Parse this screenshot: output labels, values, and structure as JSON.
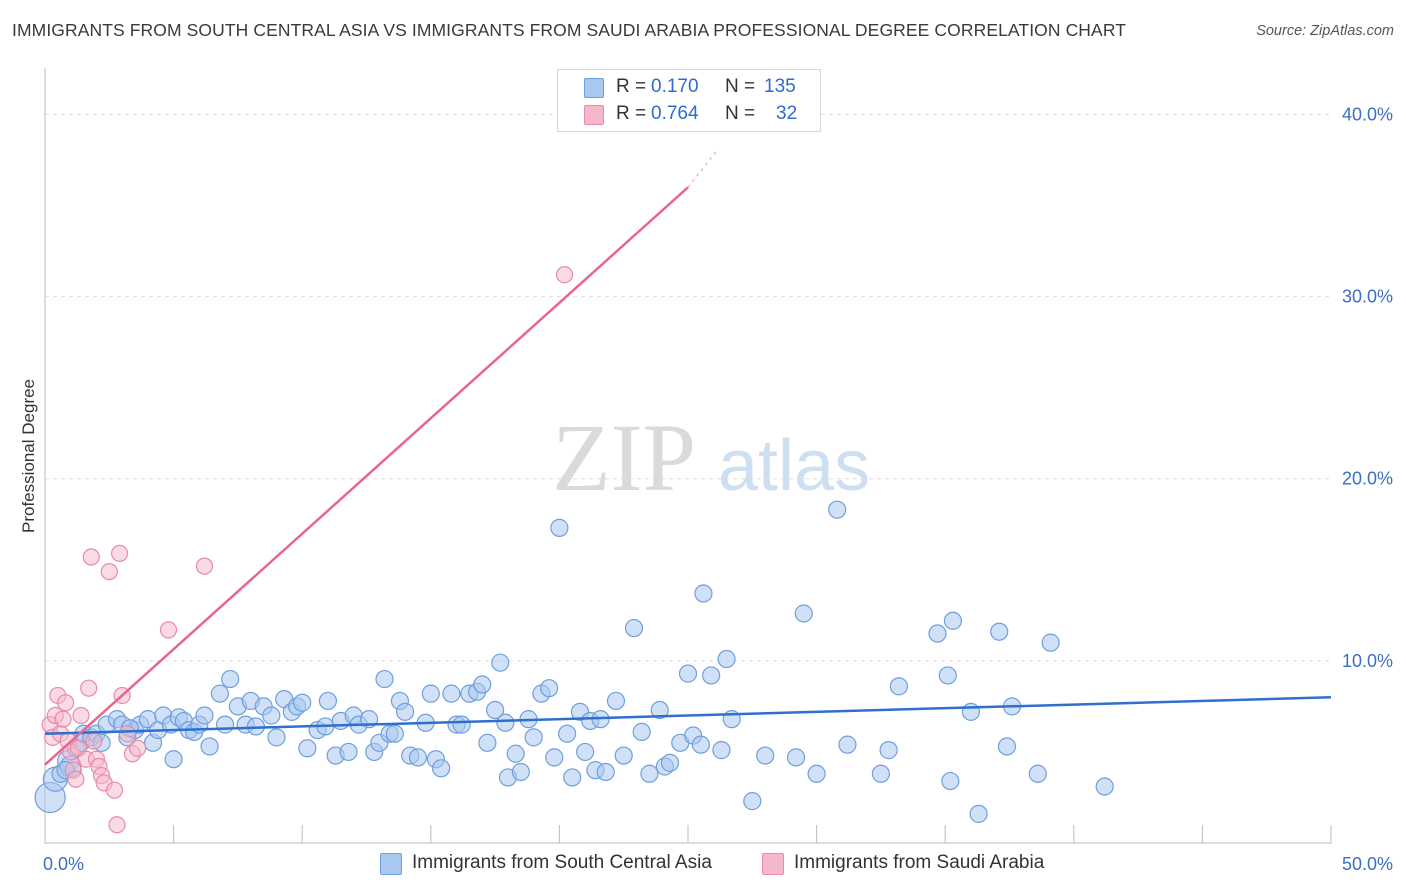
{
  "header": {
    "title": "IMMIGRANTS FROM SOUTH CENTRAL ASIA VS IMMIGRANTS FROM SAUDI ARABIA PROFESSIONAL DEGREE CORRELATION CHART",
    "source": "Source: ZipAtlas.com"
  },
  "watermark": "ZIPatlas",
  "legend": {
    "rows": [
      {
        "r_label": "R =",
        "r_value": "0.170",
        "n_label": "N =",
        "n_value": "135",
        "color": "#a9c8f0"
      },
      {
        "r_label": "R =",
        "r_value": "0.764",
        "n_label": "N =",
        "n_value": "32",
        "color": "#f5b8cb"
      }
    ]
  },
  "bottom_legend": {
    "series1": "Immigrants from South Central Asia",
    "series2": "Immigrants from Saudi Arabia"
  },
  "colors": {
    "blue_fill": "#a9c8f0",
    "blue_stroke": "#6f9fdc",
    "blue_line": "#2e6fd0",
    "pink_fill": "#f5b8cb",
    "pink_stroke": "#e98aa8",
    "pink_line": "#e8658f",
    "grid": "#dddddd",
    "tick_label": "#3a6fc4"
  },
  "chart_data": {
    "type": "scatter",
    "title": "IMMIGRANTS FROM SOUTH CENTRAL ASIA VS IMMIGRANTS FROM SAUDI ARABIA PROFESSIONAL DEGREE CORRELATION CHART",
    "xlabel": "",
    "ylabel": "Professional Degree",
    "xlim": [
      0,
      50
    ],
    "ylim": [
      0,
      42
    ],
    "x_tick_labels": [
      "0.0%",
      "50.0%"
    ],
    "y_ticks": [
      10,
      20,
      30,
      40
    ],
    "y_tick_labels": [
      "10.0%",
      "20.0%",
      "30.0%",
      "40.0%"
    ],
    "grid": "horizontal dashed",
    "legend_position": "top-center",
    "series": [
      {
        "name": "Immigrants from South Central Asia",
        "R": 0.17,
        "N": 135,
        "trend": {
          "x": [
            0,
            50
          ],
          "y": [
            6.0,
            8.0
          ]
        },
        "points": [
          [
            0.2,
            2.5
          ],
          [
            0.4,
            3.5
          ],
          [
            0.6,
            3.8
          ],
          [
            0.9,
            4.5
          ],
          [
            1.0,
            4.2
          ],
          [
            1.2,
            5.2
          ],
          [
            1.4,
            5.5
          ],
          [
            1.5,
            6.0
          ],
          [
            1.8,
            5.8
          ],
          [
            2.0,
            6.0
          ],
          [
            2.2,
            5.5
          ],
          [
            2.4,
            6.5
          ],
          [
            2.8,
            6.8
          ],
          [
            3.0,
            6.5
          ],
          [
            3.2,
            5.8
          ],
          [
            3.5,
            6.2
          ],
          [
            3.7,
            6.5
          ],
          [
            4.0,
            6.8
          ],
          [
            4.2,
            5.5
          ],
          [
            4.4,
            6.2
          ],
          [
            4.6,
            7.0
          ],
          [
            4.9,
            6.5
          ],
          [
            5.0,
            4.6
          ],
          [
            5.2,
            6.9
          ],
          [
            5.4,
            6.7
          ],
          [
            5.6,
            6.2
          ],
          [
            5.8,
            6.1
          ],
          [
            6.0,
            6.5
          ],
          [
            6.2,
            7.0
          ],
          [
            6.4,
            5.3
          ],
          [
            6.8,
            8.2
          ],
          [
            7.0,
            6.5
          ],
          [
            7.2,
            9.0
          ],
          [
            7.5,
            7.5
          ],
          [
            7.8,
            6.5
          ],
          [
            8.0,
            7.8
          ],
          [
            8.2,
            6.4
          ],
          [
            8.5,
            7.5
          ],
          [
            8.8,
            7.0
          ],
          [
            9.0,
            5.8
          ],
          [
            9.3,
            7.9
          ],
          [
            9.6,
            7.2
          ],
          [
            9.8,
            7.5
          ],
          [
            10.0,
            7.7
          ],
          [
            10.2,
            5.2
          ],
          [
            10.6,
            6.2
          ],
          [
            10.9,
            6.4
          ],
          [
            11.0,
            7.8
          ],
          [
            11.3,
            4.8
          ],
          [
            11.5,
            6.7
          ],
          [
            11.8,
            5.0
          ],
          [
            12.0,
            7.0
          ],
          [
            12.2,
            6.5
          ],
          [
            12.6,
            6.8
          ],
          [
            12.8,
            5.0
          ],
          [
            13.0,
            5.5
          ],
          [
            13.2,
            9.0
          ],
          [
            13.4,
            6.0
          ],
          [
            13.6,
            6.0
          ],
          [
            13.8,
            7.8
          ],
          [
            14.0,
            7.2
          ],
          [
            14.2,
            4.8
          ],
          [
            14.5,
            4.7
          ],
          [
            14.8,
            6.6
          ],
          [
            15.0,
            8.2
          ],
          [
            15.2,
            4.6
          ],
          [
            15.4,
            4.1
          ],
          [
            15.8,
            8.2
          ],
          [
            16.0,
            6.5
          ],
          [
            16.2,
            6.5
          ],
          [
            16.5,
            8.2
          ],
          [
            16.8,
            8.3
          ],
          [
            17.0,
            8.7
          ],
          [
            17.2,
            5.5
          ],
          [
            17.5,
            7.3
          ],
          [
            17.7,
            9.9
          ],
          [
            17.9,
            6.6
          ],
          [
            18.0,
            3.6
          ],
          [
            18.3,
            4.9
          ],
          [
            18.5,
            3.9
          ],
          [
            18.8,
            6.8
          ],
          [
            19.0,
            5.8
          ],
          [
            19.3,
            8.2
          ],
          [
            19.6,
            8.5
          ],
          [
            19.8,
            4.7
          ],
          [
            20.0,
            17.3
          ],
          [
            20.3,
            6.0
          ],
          [
            20.5,
            3.6
          ],
          [
            20.8,
            7.2
          ],
          [
            21.0,
            5.0
          ],
          [
            21.2,
            6.7
          ],
          [
            21.4,
            4.0
          ],
          [
            21.6,
            6.8
          ],
          [
            21.8,
            3.9
          ],
          [
            22.2,
            7.8
          ],
          [
            22.5,
            4.8
          ],
          [
            22.9,
            11.8
          ],
          [
            23.2,
            6.1
          ],
          [
            23.5,
            3.8
          ],
          [
            23.9,
            7.3
          ],
          [
            24.1,
            4.2
          ],
          [
            24.3,
            4.4
          ],
          [
            24.7,
            5.5
          ],
          [
            25.0,
            9.3
          ],
          [
            25.2,
            5.9
          ],
          [
            25.5,
            5.4
          ],
          [
            25.6,
            13.7
          ],
          [
            25.9,
            9.2
          ],
          [
            26.3,
            5.1
          ],
          [
            26.5,
            10.1
          ],
          [
            26.7,
            6.8
          ],
          [
            27.5,
            2.3
          ],
          [
            28.0,
            4.8
          ],
          [
            29.2,
            4.7
          ],
          [
            29.5,
            12.6
          ],
          [
            30.0,
            3.8
          ],
          [
            30.8,
            18.3
          ],
          [
            31.2,
            5.4
          ],
          [
            32.5,
            3.8
          ],
          [
            32.8,
            5.1
          ],
          [
            33.2,
            8.6
          ],
          [
            34.7,
            11.5
          ],
          [
            35.1,
            9.2
          ],
          [
            35.2,
            3.4
          ],
          [
            35.3,
            12.2
          ],
          [
            36.0,
            7.2
          ],
          [
            36.3,
            1.6
          ],
          [
            37.1,
            11.6
          ],
          [
            37.4,
            5.3
          ],
          [
            37.6,
            7.5
          ],
          [
            38.6,
            3.8
          ],
          [
            39.1,
            11.0
          ],
          [
            41.2,
            3.1
          ],
          [
            0.8,
            4.0
          ],
          [
            3.3,
            6.3
          ]
        ]
      },
      {
        "name": "Immigrants from Saudi Arabia",
        "R": 0.764,
        "N": 32,
        "trend": {
          "x": [
            0,
            25
          ],
          "y": [
            4.3,
            36
          ]
        },
        "points": [
          [
            0.2,
            6.5
          ],
          [
            0.3,
            5.8
          ],
          [
            0.4,
            7.0
          ],
          [
            0.5,
            8.1
          ],
          [
            0.6,
            6.0
          ],
          [
            0.7,
            6.8
          ],
          [
            0.8,
            7.7
          ],
          [
            0.9,
            5.6
          ],
          [
            1.0,
            5.0
          ],
          [
            1.1,
            4.0
          ],
          [
            1.2,
            3.5
          ],
          [
            1.3,
            5.2
          ],
          [
            1.4,
            7.0
          ],
          [
            1.6,
            4.6
          ],
          [
            1.7,
            8.5
          ],
          [
            1.8,
            15.7
          ],
          [
            1.9,
            5.6
          ],
          [
            2.0,
            4.6
          ],
          [
            2.1,
            4.2
          ],
          [
            2.2,
            3.7
          ],
          [
            2.3,
            3.3
          ],
          [
            2.5,
            14.9
          ],
          [
            2.7,
            2.9
          ],
          [
            2.8,
            1.0
          ],
          [
            2.9,
            15.9
          ],
          [
            3.0,
            8.1
          ],
          [
            3.2,
            6.0
          ],
          [
            3.4,
            4.9
          ],
          [
            3.6,
            5.2
          ],
          [
            4.8,
            11.7
          ],
          [
            6.2,
            15.2
          ],
          [
            20.2,
            31.2
          ]
        ]
      }
    ]
  }
}
